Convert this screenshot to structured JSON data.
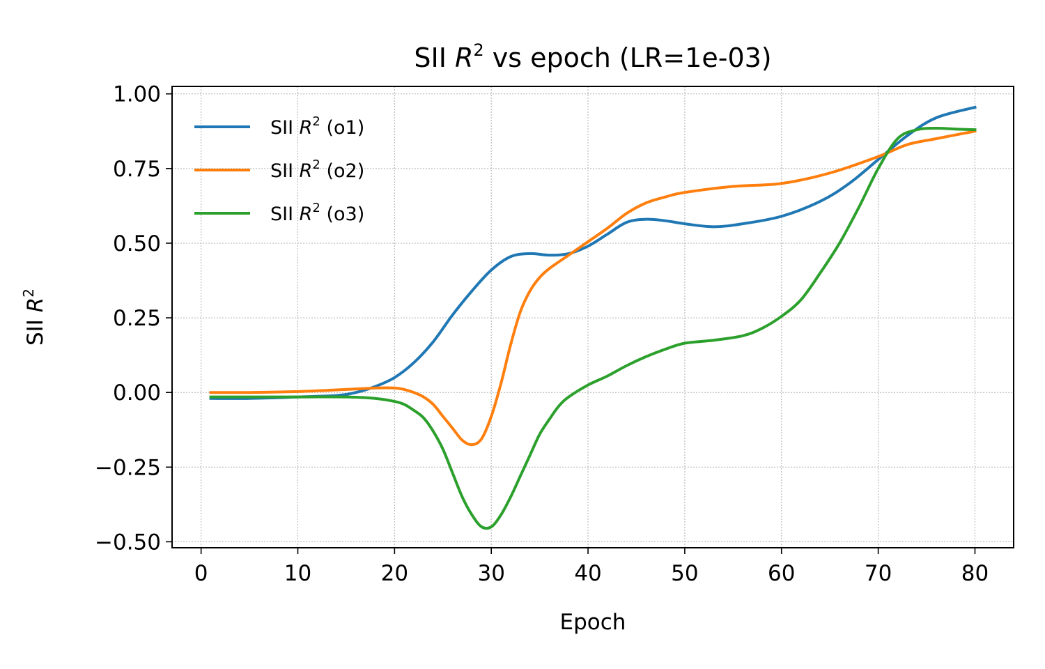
{
  "chart_data": {
    "type": "line",
    "title": "SII R² vs epoch (LR=1e-03)",
    "title_parts": {
      "prefix": "SII ",
      "var": "R",
      "sup": "2",
      "suffix": " vs epoch (LR=1e-03)"
    },
    "xlabel": "Epoch",
    "ylabel": "SII R²",
    "ylabel_parts": {
      "prefix": "SII ",
      "var": "R",
      "sup": "2"
    },
    "xlim": [
      -3,
      84
    ],
    "ylim": [
      -0.52,
      1.025
    ],
    "xticks": [
      0,
      10,
      20,
      30,
      40,
      50,
      60,
      70,
      80
    ],
    "xtick_labels": [
      "0",
      "10",
      "20",
      "30",
      "40",
      "50",
      "60",
      "70",
      "80"
    ],
    "yticks": [
      -0.5,
      -0.25,
      0.0,
      0.25,
      0.5,
      0.75,
      1.0
    ],
    "ytick_labels": [
      "−0.50",
      "−0.25",
      "0.00",
      "0.25",
      "0.50",
      "0.75",
      "1.00"
    ],
    "grid": true,
    "legend_position": "top-left",
    "series": [
      {
        "name": "SII R² (o1)",
        "name_parts": {
          "prefix": "SII ",
          "var": "R",
          "sup": "2",
          "suffix": " (o1)"
        },
        "color": "#1f77b4",
        "x": [
          1,
          5,
          10,
          14,
          16,
          18,
          20,
          22,
          24,
          26,
          28,
          30,
          32,
          34,
          36,
          38,
          40,
          42,
          44,
          46,
          48,
          50,
          53,
          56,
          60,
          64,
          67,
          70,
          73,
          76,
          80
        ],
        "y": [
          -0.02,
          -0.02,
          -0.015,
          -0.01,
          0.0,
          0.02,
          0.05,
          0.1,
          0.17,
          0.26,
          0.34,
          0.41,
          0.455,
          0.465,
          0.46,
          0.465,
          0.49,
          0.53,
          0.57,
          0.58,
          0.575,
          0.565,
          0.555,
          0.565,
          0.59,
          0.64,
          0.7,
          0.78,
          0.86,
          0.92,
          0.955
        ]
      },
      {
        "name": "SII R² (o2)",
        "name_parts": {
          "prefix": "SII ",
          "var": "R",
          "sup": "2",
          "suffix": " (o2)"
        },
        "color": "#ff7f0e",
        "x": [
          1,
          5,
          10,
          15,
          18,
          20,
          21,
          22,
          23,
          24,
          25,
          26,
          27,
          28,
          29,
          30,
          31,
          32,
          33,
          34,
          35,
          36,
          38,
          40,
          42,
          44,
          46,
          48,
          50,
          55,
          60,
          65,
          70,
          73,
          76,
          80
        ],
        "y": [
          0.0,
          0.0,
          0.003,
          0.01,
          0.015,
          0.015,
          0.01,
          0.0,
          -0.015,
          -0.04,
          -0.08,
          -0.12,
          -0.16,
          -0.175,
          -0.155,
          -0.08,
          0.03,
          0.16,
          0.27,
          0.34,
          0.385,
          0.415,
          0.46,
          0.505,
          0.55,
          0.6,
          0.635,
          0.655,
          0.67,
          0.69,
          0.7,
          0.735,
          0.79,
          0.83,
          0.85,
          0.875
        ]
      },
      {
        "name": "SII R² (o3)",
        "name_parts": {
          "prefix": "SII ",
          "var": "R",
          "sup": "2",
          "suffix": " (o3)"
        },
        "color": "#2ca02c",
        "x": [
          1,
          10,
          15,
          18,
          20,
          21,
          22,
          23,
          24,
          25,
          26,
          27,
          28,
          29,
          30,
          31,
          32,
          33,
          34,
          35,
          36,
          37,
          38,
          40,
          42,
          44,
          46,
          48,
          50,
          53,
          56,
          58,
          60,
          62,
          64,
          66,
          68,
          70,
          72,
          74,
          76,
          78,
          80
        ],
        "y": [
          -0.015,
          -0.015,
          -0.015,
          -0.02,
          -0.03,
          -0.04,
          -0.06,
          -0.085,
          -0.13,
          -0.19,
          -0.27,
          -0.35,
          -0.41,
          -0.45,
          -0.45,
          -0.41,
          -0.35,
          -0.28,
          -0.21,
          -0.14,
          -0.09,
          -0.045,
          -0.015,
          0.025,
          0.055,
          0.09,
          0.12,
          0.145,
          0.165,
          0.175,
          0.19,
          0.215,
          0.255,
          0.31,
          0.4,
          0.5,
          0.62,
          0.75,
          0.85,
          0.88,
          0.885,
          0.882,
          0.88
        ]
      }
    ]
  }
}
